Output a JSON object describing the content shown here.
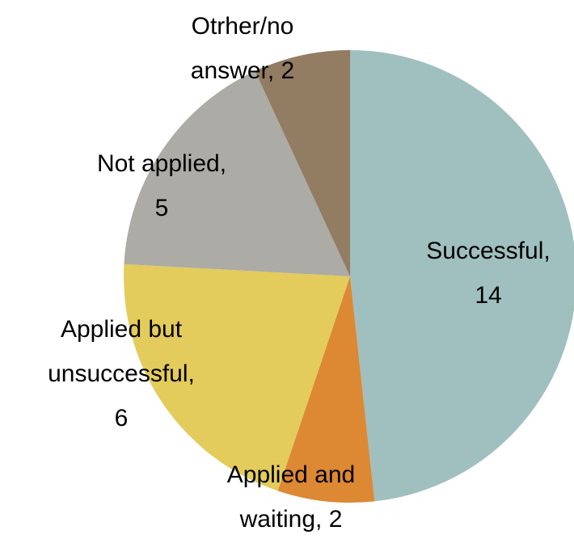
{
  "chart_data": {
    "type": "pie",
    "categories": [
      "Successful,",
      "Applied and waiting,",
      "Applied but unsuccessful,",
      "Not applied,",
      "Otrher/no answer,"
    ],
    "values": [
      14,
      2,
      6,
      5,
      2
    ],
    "colors": [
      "#a0bfbf",
      "#dd8833",
      "#e3cb5c",
      "#acaba5",
      "#927c62"
    ]
  }
}
